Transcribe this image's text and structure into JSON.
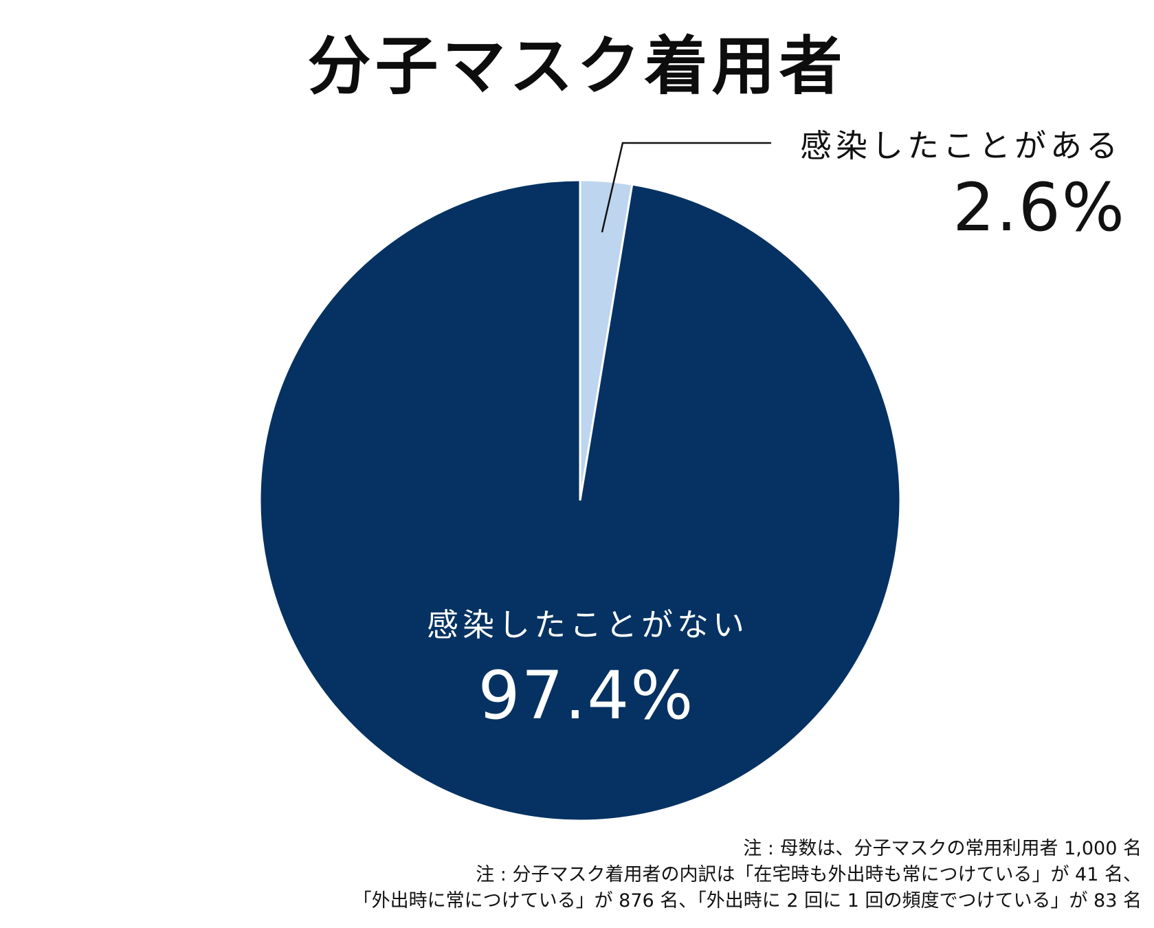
{
  "chart_data": {
    "type": "pie",
    "title": "分子マスク着用者",
    "slices": [
      {
        "label": "感染したことがある",
        "value": 2.6,
        "value_label": "2.6%",
        "color": "#bdd5ee"
      },
      {
        "label": "感染したことがない",
        "value": 97.4,
        "value_label": "97.4%",
        "color": "#053262"
      }
    ],
    "start": "12 o'clock",
    "direction": "clockwise"
  },
  "notes": [
    "注 : 母数は、分子マスクの常用利用者 1,000 名",
    "注 : 分子マスク着用者の内訳は「在宅時も外出時も常につけている」が 41 名、",
    "「外出時に常につけている」が 876 名、「外出時に 2 回に 1 回の頻度でつけている」が 83 名"
  ]
}
